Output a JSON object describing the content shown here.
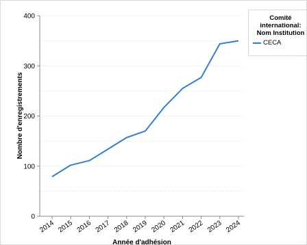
{
  "chart_data": {
    "type": "line",
    "x": [
      "2014",
      "2015",
      "2016",
      "2017",
      "2018",
      "2019",
      "2020",
      "2021",
      "2022",
      "2023",
      "2024"
    ],
    "series": [
      {
        "name": "CECA",
        "values": [
          79,
          102,
          111,
          134,
          157,
          170,
          217,
          255,
          277,
          344,
          350
        ],
        "color": "#2f7ed8"
      }
    ],
    "xlabel": "Année d'adhésion",
    "ylabel": "Nombre d'enregistrements",
    "ylim": [
      0,
      400
    ],
    "yticks": [
      0,
      100,
      200,
      300,
      400
    ],
    "grid": true,
    "legend": {
      "title_lines": [
        "Comité",
        "international:",
        "Nom Institution"
      ],
      "placement": "top-right"
    }
  }
}
